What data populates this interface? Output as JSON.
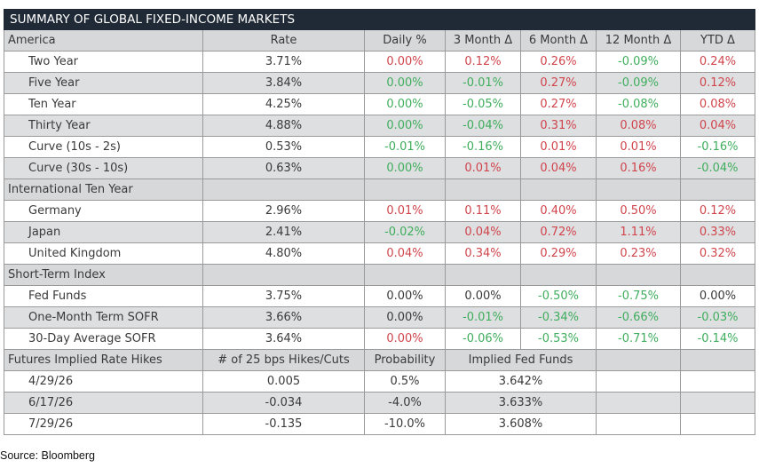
{
  "title": "SUMMARY OF GLOBAL FIXED-INCOME MARKETS",
  "header": {
    "section": "America",
    "columns": [
      "Rate",
      "Daily %",
      "3 Month Δ",
      "6 Month Δ",
      "12 Month Δ",
      "YTD Δ"
    ]
  },
  "america": {
    "rows": [
      {
        "label": "Two Year",
        "rate": "3.71%",
        "daily": "0.00%",
        "m3": "0.12%",
        "m6": "0.26%",
        "m12": "-0.09%",
        "ytd": "0.24%"
      },
      {
        "label": "Five Year",
        "rate": "3.84%",
        "daily": "0.00%",
        "m3": "-0.01%",
        "m6": "0.27%",
        "m12": "-0.09%",
        "ytd": "0.12%"
      },
      {
        "label": "Ten Year",
        "rate": "4.25%",
        "daily": "0.00%",
        "m3": "-0.05%",
        "m6": "0.27%",
        "m12": "-0.08%",
        "ytd": "0.08%"
      },
      {
        "label": "Thirty Year",
        "rate": "4.88%",
        "daily": "0.00%",
        "m3": "-0.04%",
        "m6": "0.31%",
        "m12": "0.08%",
        "ytd": "0.04%"
      },
      {
        "label": "Curve (10s - 2s)",
        "rate": "0.53%",
        "daily": "-0.01%",
        "m3": "-0.16%",
        "m6": "0.01%",
        "m12": "0.01%",
        "ytd": "-0.16%"
      },
      {
        "label": "Curve (30s - 10s)",
        "rate": "0.63%",
        "daily": "0.00%",
        "m3": "0.01%",
        "m6": "0.04%",
        "m12": "0.16%",
        "ytd": "-0.04%"
      }
    ]
  },
  "international": {
    "title": "International Ten Year",
    "rows": [
      {
        "label": "Germany",
        "rate": "2.96%",
        "daily": "0.01%",
        "m3": "0.11%",
        "m6": "0.40%",
        "m12": "0.50%",
        "ytd": "0.12%"
      },
      {
        "label": "Japan",
        "rate": "2.41%",
        "daily": "-0.02%",
        "m3": "0.04%",
        "m6": "0.72%",
        "m12": "1.11%",
        "ytd": "0.33%"
      },
      {
        "label": "United Kingdom",
        "rate": "4.80%",
        "daily": "0.04%",
        "m3": "0.34%",
        "m6": "0.29%",
        "m12": "0.23%",
        "ytd": "0.32%"
      }
    ]
  },
  "short_term": {
    "title": "Short-Term Index",
    "rows": [
      {
        "label": "Fed Funds",
        "rate": "3.75%",
        "daily": "0.00%",
        "m3": "0.00%",
        "m6": "-0.50%",
        "m12": "-0.75%",
        "ytd": "0.00%"
      },
      {
        "label": "One-Month Term SOFR",
        "rate": "3.66%",
        "daily": "0.00%",
        "m3": "-0.01%",
        "m6": "-0.34%",
        "m12": "-0.66%",
        "ytd": "-0.03%"
      },
      {
        "label": "30-Day Average SOFR",
        "rate": "3.64%",
        "daily": "0.00%",
        "m3": "-0.06%",
        "m6": "-0.53%",
        "m12": "-0.71%",
        "ytd": "-0.14%"
      }
    ]
  },
  "futures": {
    "title": "Futures Implied Rate Hikes",
    "col_hikes": "# of 25 bps Hikes/Cuts",
    "col_prob": "Probability",
    "col_implied": "Implied Fed Funds",
    "rows": [
      {
        "date": "4/29/26",
        "hikes": "0.005",
        "prob": "0.5%",
        "implied": "3.642%"
      },
      {
        "date": "6/17/26",
        "hikes": "-0.034",
        "prob": "-4.0%",
        "implied": "3.633%"
      },
      {
        "date": "7/29/26",
        "hikes": "-0.135",
        "prob": "-10.0%",
        "implied": "3.608%"
      }
    ]
  },
  "source": "Source: Bloomberg",
  "colors": {
    "positive": "#d0454c",
    "negative": "#3fae5d",
    "title_bg": "#1f2a36",
    "shade": "#dedfe1"
  }
}
